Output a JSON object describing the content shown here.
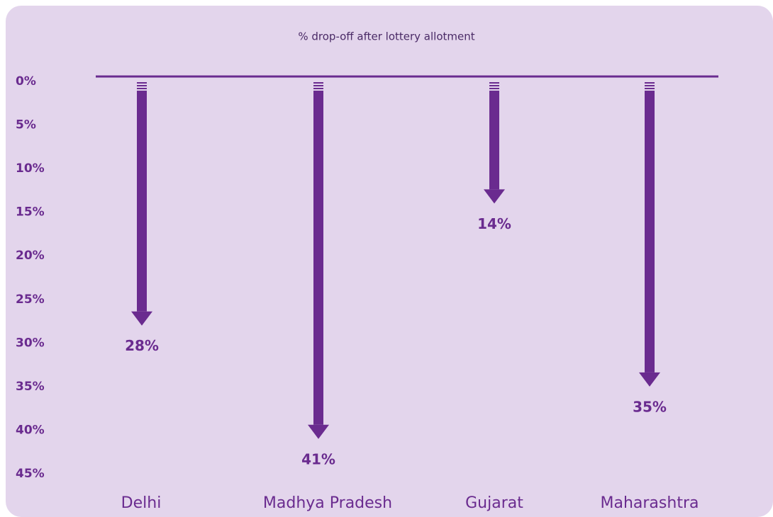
{
  "chart_data": {
    "type": "arrow",
    "title": "% drop-off after lottery allotment",
    "categories": [
      "Delhi",
      "Madhya Pradesh",
      "Gujarat",
      "Maharashtra"
    ],
    "values": [
      28,
      41,
      14,
      35
    ],
    "value_labels": [
      "28%",
      "41%",
      "14%",
      "35%"
    ],
    "color": "#6a2b8f",
    "ylim": [
      0,
      45
    ],
    "yticks": [
      {
        "value": 0,
        "label": "0%"
      },
      {
        "value": 5,
        "label": "5%"
      },
      {
        "value": 10,
        "label": "10%"
      },
      {
        "value": 15,
        "label": "15%"
      },
      {
        "value": 20,
        "label": "20%"
      },
      {
        "value": 25,
        "label": "25%"
      },
      {
        "value": 30,
        "label": "30%"
      },
      {
        "value": 35,
        "label": "35%"
      },
      {
        "value": 40,
        "label": "40%"
      },
      {
        "value": 45,
        "label": "45%"
      }
    ],
    "grid": false
  }
}
